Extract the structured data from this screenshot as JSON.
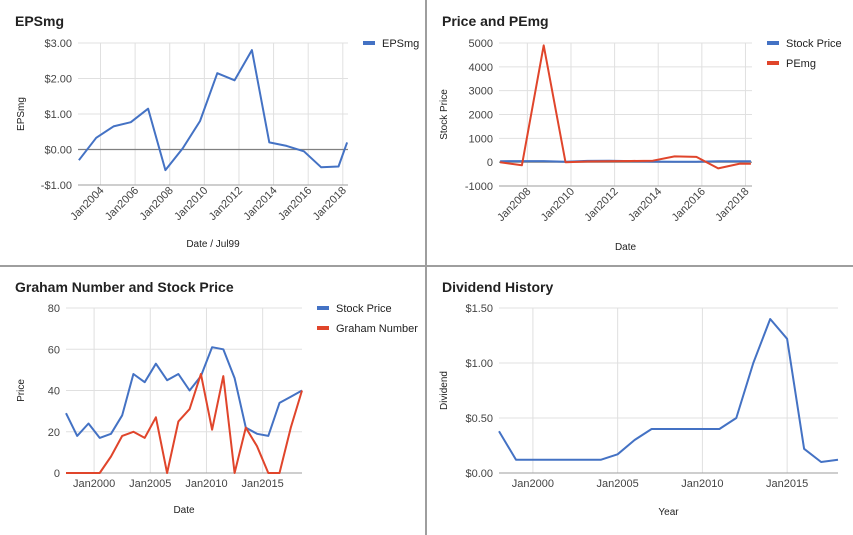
{
  "chart_data": [
    {
      "type": "line",
      "title": "EPSmg",
      "xlabel": "Date / Jul99",
      "ylabel": "EPSmg",
      "ylim": [
        -1,
        3
      ],
      "yticks": [
        -1,
        0,
        1,
        2,
        3
      ],
      "yticklabels": [
        "-$1.00",
        "$0.00",
        "$1.00",
        "$2.00",
        "$3.00"
      ],
      "xlim": [
        2002.7,
        2018.3
      ],
      "xticks": [
        2004,
        2006,
        2008,
        2010,
        2012,
        2014,
        2016,
        2018
      ],
      "xticklabels": [
        "Jan2004",
        "Jan2006",
        "Jan2008",
        "Jan2010",
        "Jan2012",
        "Jan2014",
        "Jan2016",
        "Jan2018"
      ],
      "rotate_xticks": true,
      "grid": true,
      "zero_line": true,
      "legend": "right",
      "series": [
        {
          "name": "EPSmg",
          "color": "#4472c4",
          "x": [
            2002.75,
            2003.75,
            2004.75,
            2005.75,
            2006.75,
            2007.75,
            2008.75,
            2009.75,
            2010.75,
            2011.75,
            2012.75,
            2013.75,
            2014.75,
            2015.75,
            2016.75,
            2017.75,
            2018.25
          ],
          "values": [
            -0.3,
            0.33,
            0.65,
            0.77,
            1.15,
            -0.58,
            0.03,
            0.8,
            2.15,
            1.95,
            2.8,
            0.2,
            0.1,
            -0.05,
            -0.5,
            -0.48,
            0.2
          ]
        }
      ]
    },
    {
      "type": "line",
      "title": "Price and PEmg",
      "xlabel": "Date",
      "ylabel": "Stock Price",
      "ylim": [
        -1000,
        5000
      ],
      "yticks": [
        -1000,
        0,
        1000,
        2000,
        3000,
        4000,
        5000
      ],
      "yticklabels": [
        "-1000",
        "0",
        "1000",
        "2000",
        "3000",
        "4000",
        "5000"
      ],
      "xlim": [
        2006.7,
        2018.3
      ],
      "xticks": [
        2008,
        2010,
        2012,
        2014,
        2016,
        2018
      ],
      "xticklabels": [
        "Jan2008",
        "Jan2010",
        "Jan2012",
        "Jan2014",
        "Jan2016",
        "Jan2018"
      ],
      "rotate_xticks": true,
      "grid": true,
      "zero_line": true,
      "legend": "right",
      "series": [
        {
          "name": "Stock Price",
          "color": "#4472c4",
          "x": [
            2006.75,
            2007.75,
            2008.75,
            2009.75,
            2010.75,
            2011.75,
            2012.75,
            2013.75,
            2014.75,
            2015.75,
            2016.75,
            2017.75,
            2018.25
          ],
          "values": [
            40,
            45,
            45,
            20,
            55,
            60,
            45,
            25,
            20,
            18,
            35,
            38,
            40
          ]
        },
        {
          "name": "PEmg",
          "color": "#e0452b",
          "x": [
            2006.75,
            2007.75,
            2008.75,
            2009.75,
            2010.75,
            2011.75,
            2012.75,
            2013.75,
            2014.75,
            2015.75,
            2016.75,
            2017.75,
            2018.25
          ],
          "values": [
            0,
            -130,
            4900,
            0,
            30,
            40,
            50,
            60,
            240,
            220,
            -260,
            -60,
            -70
          ]
        }
      ]
    },
    {
      "type": "line",
      "title": "Graham Number and Stock Price",
      "xlabel": "Date",
      "ylabel": "Price",
      "ylim": [
        0,
        80
      ],
      "yticks": [
        0,
        20,
        40,
        60,
        80
      ],
      "yticklabels": [
        "0",
        "20",
        "40",
        "60",
        "80"
      ],
      "xlim": [
        1997.5,
        2018.5
      ],
      "xticks": [
        2000,
        2005,
        2010,
        2015
      ],
      "xticklabels": [
        "Jan2000",
        "Jan2005",
        "Jan2010",
        "Jan2015"
      ],
      "rotate_xticks": false,
      "grid": true,
      "legend": "right",
      "series": [
        {
          "name": "Stock Price",
          "color": "#4472c4",
          "x": [
            1997.5,
            1998.5,
            1999.5,
            2000.5,
            2001.5,
            2002.5,
            2003.5,
            2004.5,
            2005.5,
            2006.5,
            2007.5,
            2008.5,
            2009.5,
            2010.5,
            2011.5,
            2012.5,
            2013.5,
            2014.5,
            2015.5,
            2016.5,
            2017.5,
            2018.5
          ],
          "values": [
            29,
            18,
            24,
            17,
            19,
            28,
            48,
            44,
            53,
            45,
            48,
            40,
            47,
            61,
            60,
            46,
            22,
            19,
            18,
            34,
            37,
            40
          ]
        },
        {
          "name": "Graham Number",
          "color": "#e0452b",
          "x": [
            1997.5,
            1998.5,
            1999.5,
            2000.5,
            2001.5,
            2002.5,
            2003.5,
            2004.5,
            2005.5,
            2006.5,
            2007.5,
            2008.5,
            2009.5,
            2010.5,
            2011.5,
            2012.5,
            2013.5,
            2014.5,
            2015.5,
            2016.5,
            2017.5,
            2018.5
          ],
          "values": [
            0,
            0,
            0,
            0,
            8,
            18,
            20,
            17,
            27,
            0,
            25,
            31,
            48,
            21,
            47,
            0,
            22,
            13,
            0,
            0,
            22,
            40
          ]
        }
      ]
    },
    {
      "type": "line",
      "title": "Dividend History",
      "xlabel": "Year",
      "ylabel": "Dividend",
      "ylim": [
        0,
        1.5
      ],
      "yticks": [
        0,
        0.5,
        1,
        1.5
      ],
      "yticklabels": [
        "$0.00",
        "$0.50",
        "$1.00",
        "$1.50"
      ],
      "xlim": [
        1998,
        2018
      ],
      "xticks": [
        2000,
        2005,
        2010,
        2015
      ],
      "xticklabels": [
        "Jan2000",
        "Jan2005",
        "Jan2010",
        "Jan2015"
      ],
      "rotate_xticks": false,
      "grid": true,
      "legend": "none",
      "series": [
        {
          "name": "",
          "color": "#4472c4",
          "x": [
            1998,
            1999,
            2000,
            2001,
            2002,
            2003,
            2004,
            2005,
            2006,
            2007,
            2008,
            2009,
            2010,
            2011,
            2012,
            2013,
            2014,
            2015,
            2016,
            2017,
            2018
          ],
          "values": [
            0.38,
            0.12,
            0.12,
            0.12,
            0.12,
            0.12,
            0.12,
            0.17,
            0.3,
            0.4,
            0.4,
            0.4,
            0.4,
            0.4,
            0.5,
            1.0,
            1.4,
            1.22,
            0.22,
            0.1,
            0.12
          ]
        }
      ]
    }
  ]
}
